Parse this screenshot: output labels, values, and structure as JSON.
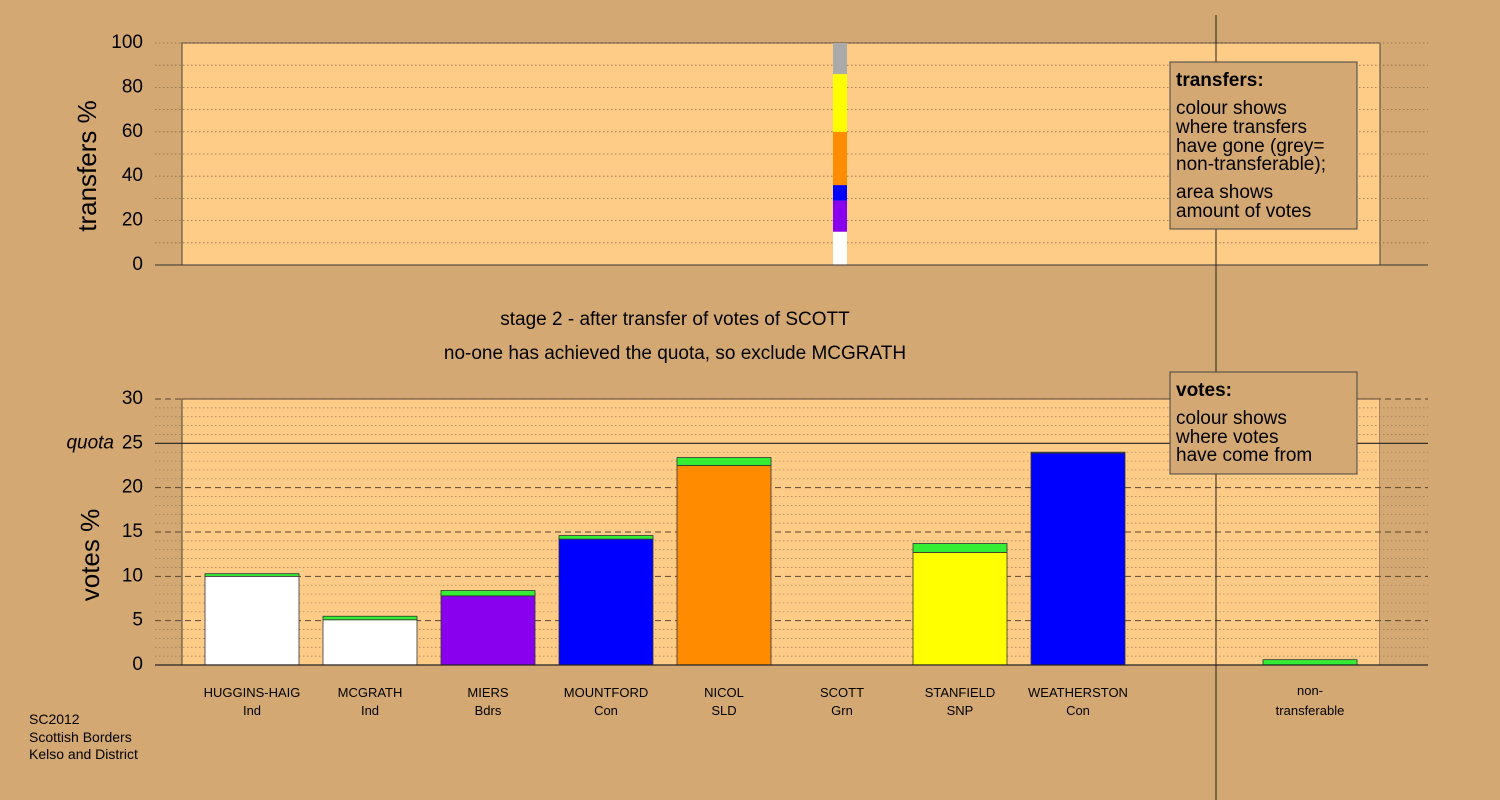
{
  "colors": {
    "background": "#D4A872",
    "plot_bg": "#FFCC88",
    "new_votes": "#33EE33",
    "non_transferable": "#AAAAAA"
  },
  "header": {
    "stage_line": "stage 2 - after transfer of votes of SCOTT",
    "status_line": "no-one has achieved the quota, so exclude MCGRATH"
  },
  "footer": {
    "line1": "SC2012",
    "line2": "Scottish Borders",
    "line3": "Kelso and District"
  },
  "legend_transfers": {
    "title": "transfers:",
    "lines": [
      "colour shows",
      "where transfers",
      "have gone (grey=",
      "non-transferable);",
      "area shows",
      "amount of votes"
    ]
  },
  "legend_votes": {
    "title": "votes:",
    "lines": [
      "colour shows",
      "where votes",
      "have come from"
    ]
  },
  "chart_data": [
    {
      "type": "bar",
      "name": "transfers",
      "ylabel": "transfers %",
      "ylim": [
        0,
        100
      ],
      "yticks": [
        0,
        20,
        40,
        60,
        80,
        100
      ],
      "grid": "dotted",
      "segments": [
        {
          "to": "HUGGINS-HAIG",
          "color": "#FFFFFF",
          "value": 15
        },
        {
          "to": "MIERS",
          "color": "#8800EE",
          "value": 14
        },
        {
          "to": "MOUNTFORD",
          "color": "#0000FF",
          "value": 7
        },
        {
          "to": "NICOL",
          "color": "#FF8C00",
          "value": 24
        },
        {
          "to": "STANFIELD",
          "color": "#FFFF00",
          "value": 26
        },
        {
          "to": "non-transferable",
          "color": "#AAAAAA",
          "value": 14
        }
      ]
    },
    {
      "type": "bar",
      "name": "votes",
      "ylabel": "votes %",
      "ylim": [
        0,
        30
      ],
      "yticks": [
        0,
        5,
        10,
        15,
        20,
        25,
        30
      ],
      "quota": 25,
      "quota_label": "quota",
      "grid": "dashed",
      "candidates": [
        {
          "name": "HUGGINS-HAIG",
          "party": "Ind",
          "base": 10.0,
          "base_color": "#FFFFFF",
          "gain": 0.3
        },
        {
          "name": "MCGRATH",
          "party": "Ind",
          "base": 5.1,
          "base_color": "#FFFFFF",
          "gain": 0.4
        },
        {
          "name": "MIERS",
          "party": "Bdrs",
          "base": 7.8,
          "base_color": "#8800EE",
          "gain": 0.6
        },
        {
          "name": "MOUNTFORD",
          "party": "Con",
          "base": 14.2,
          "base_color": "#0000FF",
          "gain": 0.4
        },
        {
          "name": "NICOL",
          "party": "SLD",
          "base": 22.5,
          "base_color": "#FF8C00",
          "gain": 0.9
        },
        {
          "name": "SCOTT",
          "party": "Grn",
          "base": 0,
          "base_color": "#33EE33",
          "gain": 0
        },
        {
          "name": "STANFIELD",
          "party": "SNP",
          "base": 12.7,
          "base_color": "#FFFF00",
          "gain": 1.0
        },
        {
          "name": "WEATHERSTON",
          "party": "Con",
          "base": 23.9,
          "base_color": "#0000FF",
          "gain": 0.1
        }
      ],
      "non_transferable": {
        "line1": "non-",
        "line2": "transferable",
        "value": 0.6
      }
    }
  ]
}
